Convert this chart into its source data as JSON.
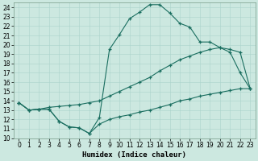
{
  "xlabel": "Humidex (Indice chaleur)",
  "bg_color": "#cce8e0",
  "line_color": "#1a6e60",
  "grid_color": "#aad4cc",
  "xlim": [
    -0.5,
    23.5
  ],
  "ylim": [
    10,
    24.5
  ],
  "ytick_min": 10,
  "ytick_max": 24,
  "xticks": [
    0,
    1,
    2,
    3,
    4,
    5,
    6,
    7,
    8,
    9,
    10,
    11,
    12,
    13,
    14,
    15,
    16,
    17,
    18,
    19,
    20,
    21,
    22,
    23
  ],
  "line1_x": [
    0,
    1,
    2,
    3,
    4,
    5,
    6,
    7,
    8,
    9,
    10,
    11,
    12,
    13,
    14,
    15,
    16,
    17,
    18,
    19,
    20,
    21,
    22,
    23
  ],
  "line1_y": [
    13.8,
    13.0,
    13.1,
    13.1,
    11.8,
    11.2,
    11.1,
    10.5,
    12.2,
    19.5,
    21.1,
    22.8,
    23.5,
    24.3,
    24.3,
    23.4,
    22.3,
    21.9,
    20.3,
    20.3,
    19.7,
    19.2,
    17.0,
    15.3
  ],
  "line2_x": [
    0,
    1,
    2,
    3,
    4,
    5,
    6,
    7,
    8,
    9,
    10,
    11,
    12,
    13,
    14,
    15,
    16,
    17,
    18,
    19,
    20,
    21,
    22,
    23
  ],
  "line2_y": [
    13.8,
    13.0,
    13.1,
    13.3,
    13.4,
    13.5,
    13.6,
    13.8,
    14.0,
    14.5,
    15.0,
    15.5,
    16.0,
    16.5,
    17.2,
    17.8,
    18.4,
    18.8,
    19.2,
    19.5,
    19.7,
    19.5,
    19.2,
    15.3
  ],
  "line3_x": [
    0,
    1,
    2,
    3,
    4,
    5,
    6,
    7,
    8,
    9,
    10,
    11,
    12,
    13,
    14,
    15,
    16,
    17,
    18,
    19,
    20,
    21,
    22,
    23
  ],
  "line3_y": [
    13.8,
    13.0,
    13.1,
    13.1,
    11.8,
    11.2,
    11.1,
    10.5,
    11.5,
    12.0,
    12.3,
    12.5,
    12.8,
    13.0,
    13.3,
    13.6,
    14.0,
    14.2,
    14.5,
    14.7,
    14.9,
    15.1,
    15.3,
    15.3
  ],
  "tick_fontsize": 5.5,
  "xlabel_fontsize": 6.5
}
